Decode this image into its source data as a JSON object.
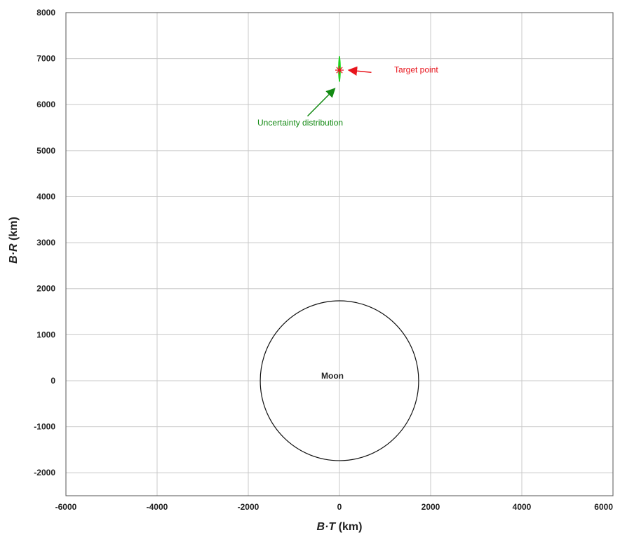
{
  "chart_data": {
    "type": "scatter",
    "xlabel_parts": [
      "B·T",
      " (km)"
    ],
    "ylabel_parts": [
      "B·R",
      " (km)"
    ],
    "xlim": [
      -6000,
      6000
    ],
    "ylim": [
      -2500,
      8000
    ],
    "xticks": [
      -6000,
      -4000,
      -2000,
      0,
      2000,
      4000,
      6000
    ],
    "yticks": [
      -2000,
      -1000,
      0,
      1000,
      2000,
      3000,
      4000,
      5000,
      6000,
      7000,
      8000
    ],
    "grid": true,
    "moon": {
      "label": "Moon",
      "center": [
        0,
        0
      ],
      "radius": 1737
    },
    "target_point": {
      "x": 0,
      "y": 6750,
      "color": "#e8141c"
    },
    "uncertainty": {
      "x_center": 0,
      "y_min": 6500,
      "y_max": 7050,
      "x_halfwidth": 25,
      "color": "#22dd22"
    },
    "annotations": [
      {
        "text": "Target point",
        "color": "#e8141c",
        "text_at": [
          1200,
          6700
        ],
        "arrow_from": [
          700,
          6700
        ],
        "arrow_to": [
          200,
          6750
        ]
      },
      {
        "text": "Uncertainty distribution",
        "color": "#138a13",
        "text_at": [
          -1800,
          5550
        ],
        "arrow_from": [
          -700,
          5750
        ],
        "arrow_to": [
          -100,
          6350
        ]
      }
    ]
  }
}
